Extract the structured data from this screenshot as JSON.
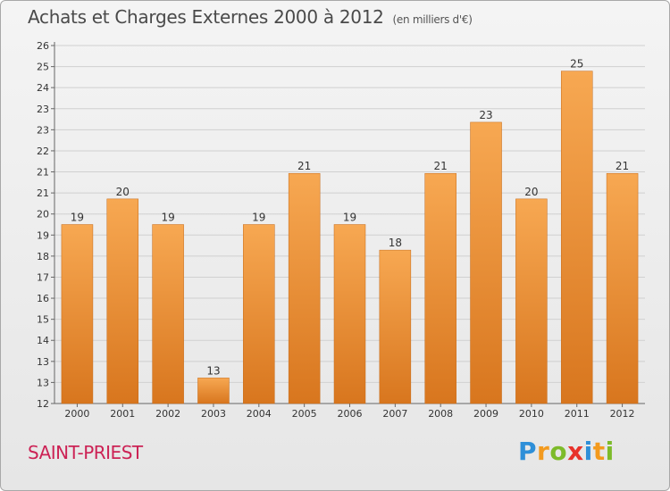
{
  "header": {
    "title": "Achats et Charges Externes 2000 à 2012",
    "subtitle": "(en milliers d'€)"
  },
  "footer": {
    "place": "SAINT-PRIEST",
    "logo_letters": [
      "P",
      "r",
      "o",
      "x",
      "i",
      "t",
      "i"
    ]
  },
  "colors": {
    "bar_top": "#f7a852",
    "bar_bottom": "#d8761e",
    "grid": "#d0d0d0",
    "place": "#cc2255"
  },
  "chart_data": {
    "type": "bar",
    "categories": [
      "2000",
      "2001",
      "2002",
      "2003",
      "2004",
      "2005",
      "2006",
      "2007",
      "2008",
      "2009",
      "2010",
      "2011",
      "2012"
    ],
    "values": [
      19,
      20,
      19,
      13,
      19,
      21,
      19,
      18,
      21,
      23,
      20,
      25,
      21
    ],
    "data_labels": [
      "19",
      "20",
      "19",
      "13",
      "19",
      "21",
      "19",
      "18",
      "21",
      "23",
      "20",
      "25",
      "21"
    ],
    "yticks": [
      "12",
      "13",
      "13",
      "14",
      "15",
      "16",
      "17",
      "18",
      "19",
      "20",
      "21",
      "21",
      "22",
      "23",
      "23",
      "24",
      "25",
      "26"
    ],
    "title": "Achats et Charges Externes 2000 à 2012",
    "ylim": [
      12,
      26
    ],
    "grid": true
  }
}
